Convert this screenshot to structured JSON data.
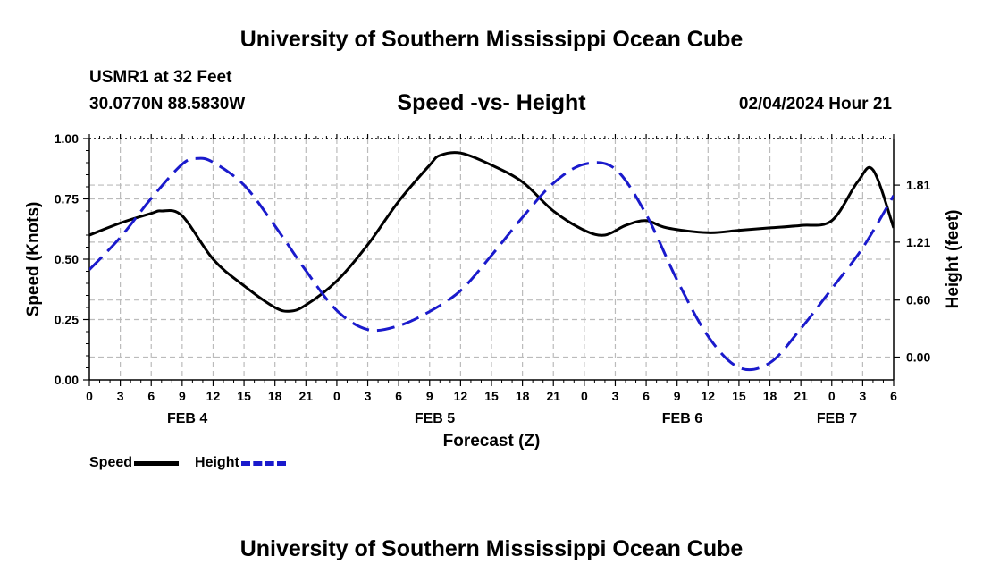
{
  "header": {
    "title": "University of Southern Mississippi Ocean Cube",
    "station": "USMR1 at 32 Feet",
    "coords": "30.0770N  88.5830W",
    "date_hour": "02/04/2024 Hour 21",
    "footer_title": "University of Southern Mississippi Ocean Cube"
  },
  "legend": {
    "speed_label": "Speed",
    "height_label": "Height"
  },
  "colors": {
    "speed": "#000000",
    "height": "#1a1acc",
    "grid": "#bbbbbb"
  },
  "chart_data": {
    "type": "line",
    "title": "Speed -vs- Height",
    "xlabel": "Forecast (Z)",
    "ylabel": "Speed (Knots)",
    "y2label": "Height (feet)",
    "xlim": [
      0,
      78
    ],
    "ylim": [
      0,
      1.0
    ],
    "y2lim": [
      -0.24,
      2.3
    ],
    "grid": true,
    "x_ticks": [
      0,
      3,
      6,
      9,
      12,
      15,
      18,
      21,
      24,
      27,
      30,
      33,
      36,
      39,
      42,
      45,
      48,
      51,
      54,
      57,
      60,
      63,
      66,
      69,
      72,
      75,
      78
    ],
    "x_tick_labels": [
      "0",
      "3",
      "6",
      "9",
      "12",
      "15",
      "18",
      "21",
      "0",
      "3",
      "6",
      "9",
      "12",
      "15",
      "18",
      "21",
      "0",
      "3",
      "6",
      "9",
      "12",
      "15",
      "18",
      "21",
      "0",
      "3",
      "6"
    ],
    "day_labels": [
      {
        "label": "FEB 4",
        "x": 9.5
      },
      {
        "label": "FEB 5",
        "x": 33.5
      },
      {
        "label": "FEB 6",
        "x": 57.5
      },
      {
        "label": "FEB 7",
        "x": 72.5
      }
    ],
    "y_ticks": [
      0.0,
      0.25,
      0.5,
      0.75,
      1.0
    ],
    "y_tick_labels": [
      "0.00",
      "0.25",
      "0.50",
      "0.75",
      "1.00"
    ],
    "y2_ticks": [
      0.0,
      0.6,
      1.21,
      1.81
    ],
    "y2_tick_labels": [
      "0.00",
      "0.60",
      "1.21",
      "1.81"
    ],
    "series": [
      {
        "name": "Speed",
        "axis": "left",
        "style": "solid",
        "x": [
          0,
          3,
          6,
          7,
          9,
          12,
          15,
          18,
          19.5,
          21,
          24,
          27,
          30,
          33,
          34,
          36,
          39,
          42,
          45,
          48,
          50,
          52,
          54,
          56,
          60,
          63,
          66,
          69,
          72,
          74.5,
          76,
          78
        ],
        "values": [
          0.6,
          0.65,
          0.69,
          0.7,
          0.68,
          0.5,
          0.39,
          0.3,
          0.285,
          0.31,
          0.41,
          0.56,
          0.74,
          0.89,
          0.93,
          0.94,
          0.89,
          0.82,
          0.7,
          0.62,
          0.6,
          0.64,
          0.66,
          0.63,
          0.61,
          0.62,
          0.63,
          0.64,
          0.66,
          0.82,
          0.87,
          0.63
        ]
      },
      {
        "name": "Height",
        "axis": "right",
        "style": "dashed",
        "x": [
          0,
          3,
          6,
          9,
          10.5,
          12,
          15,
          18,
          21,
          24,
          27,
          30,
          33,
          36,
          39,
          42,
          45,
          48,
          51,
          54,
          57,
          60,
          63,
          66,
          69,
          72,
          75,
          78
        ],
        "values": [
          0.92,
          1.26,
          1.67,
          2.03,
          2.09,
          2.05,
          1.81,
          1.38,
          0.91,
          0.49,
          0.29,
          0.33,
          0.48,
          0.7,
          1.07,
          1.47,
          1.83,
          2.03,
          1.98,
          1.5,
          0.81,
          0.22,
          -0.11,
          -0.06,
          0.3,
          0.72,
          1.15,
          1.7
        ]
      }
    ]
  }
}
